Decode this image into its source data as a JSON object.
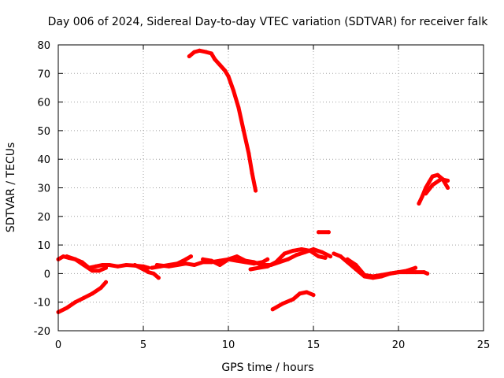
{
  "chart_data": {
    "type": "line",
    "title": "Day 006 of 2024, Sidereal Day-to-day VTEC variation (SDTVAR) for receiver falk",
    "xlabel": "GPS time / hours",
    "ylabel": "SDTVAR / TECUs",
    "xlim": [
      0,
      25
    ],
    "ylim": [
      -20,
      80
    ],
    "grid": true,
    "x_ticks": [
      "0",
      "5",
      "10",
      "15",
      "20",
      "25"
    ],
    "y_ticks": [
      "-20",
      "-10",
      "0",
      "10",
      "20",
      "30",
      "40",
      "50",
      "60",
      "70",
      "80"
    ],
    "x_tick_values": [
      0,
      5,
      10,
      15,
      20,
      25
    ],
    "y_tick_values": [
      -20,
      -10,
      0,
      10,
      20,
      30,
      40,
      50,
      60,
      70,
      80
    ],
    "series_color": "#ff0000",
    "series": [
      {
        "name": "seg-near-zero-a",
        "x": [
          0.0,
          0.3,
          0.6,
          1.0,
          1.4,
          1.8,
          2.2,
          2.6,
          3.0,
          3.5,
          4.0,
          4.5,
          5.0,
          5.3
        ],
        "y": [
          5,
          6,
          5.5,
          5,
          4,
          2,
          2.5,
          3,
          3,
          2.5,
          3,
          2.8,
          2.5,
          2
        ]
      },
      {
        "name": "seg-near-zero-b",
        "x": [
          0.5,
          1.0,
          1.5,
          2.0,
          2.4,
          2.8
        ],
        "y": [
          6,
          5,
          3,
          1,
          1,
          2
        ]
      },
      {
        "name": "seg-near-zero-c",
        "x": [
          4.5,
          5.0,
          5.3,
          5.6,
          5.9
        ],
        "y": [
          3,
          1.5,
          0.5,
          0,
          -1.5
        ]
      },
      {
        "name": "seg-mid-a",
        "x": [
          5.5,
          6.0,
          6.5,
          7.0,
          7.5,
          7.8
        ],
        "y": [
          2,
          2.5,
          3,
          3.5,
          5,
          6
        ]
      },
      {
        "name": "seg-mid-b",
        "x": [
          5.8,
          6.5,
          7.0,
          7.5,
          8.0,
          8.5,
          9.0,
          9.5,
          10.0,
          10.5,
          11.0,
          11.5,
          12.0,
          12.3
        ],
        "y": [
          3,
          2.5,
          3,
          3.5,
          3,
          4,
          4,
          4.5,
          5,
          4.5,
          4,
          3.5,
          4,
          5
        ]
      },
      {
        "name": "seg-mid-c",
        "x": [
          8.5,
          9.0,
          9.5,
          10.0,
          10.5,
          11.0,
          11.5,
          12.0,
          12.5,
          12.8
        ],
        "y": [
          5,
          4.5,
          3,
          5,
          6,
          4.5,
          4,
          3,
          3,
          4
        ]
      },
      {
        "name": "seg-mid-d",
        "x": [
          11.3,
          11.8,
          12.3,
          12.8,
          13.3,
          13.8,
          14.3,
          14.8,
          15.3,
          15.7
        ],
        "y": [
          1.5,
          2,
          2.5,
          4,
          7,
          8,
          8.5,
          8,
          6,
          5.5
        ]
      },
      {
        "name": "seg-mid-e",
        "x": [
          12.5,
          13.0,
          13.5,
          14.0,
          14.5,
          15.0,
          15.5,
          16.0
        ],
        "y": [
          3,
          4,
          5,
          6.5,
          7.5,
          8.5,
          7.5,
          6
        ]
      },
      {
        "name": "seg-bump",
        "x": [
          15.3,
          15.9
        ],
        "y": [
          14.5,
          14.5
        ]
      },
      {
        "name": "seg-right",
        "x": [
          16.2,
          16.6,
          17.0,
          17.5,
          18.0,
          18.5,
          19.0,
          19.5,
          20.0,
          20.5,
          21.0,
          21.5,
          21.7
        ],
        "y": [
          7,
          6,
          4,
          1.5,
          -1,
          -1.5,
          -1,
          0,
          0.5,
          0.5,
          0.5,
          0.5,
          0
        ]
      },
      {
        "name": "seg-right-b",
        "x": [
          17.0,
          17.5,
          18.0,
          18.5,
          19.0,
          19.5,
          20.0,
          20.5,
          21.0
        ],
        "y": [
          5,
          3,
          -0.5,
          -1,
          -0.5,
          0,
          0.5,
          1,
          2
        ]
      },
      {
        "name": "seg-low-left",
        "x": [
          0.0,
          0.5,
          1.0,
          1.5,
          2.0,
          2.5,
          2.8
        ],
        "y": [
          -13.5,
          -12,
          -10,
          -8.5,
          -7,
          -5,
          -3
        ]
      },
      {
        "name": "seg-low-mid",
        "x": [
          12.6,
          13.2,
          13.8,
          14.2,
          14.6,
          15.0
        ],
        "y": [
          -12.5,
          -10.5,
          -9,
          -7,
          -6.5,
          -7.5
        ]
      },
      {
        "name": "seg-high-arc",
        "x": [
          7.7,
          8.0,
          8.3,
          8.7,
          9.0,
          9.2,
          9.5,
          9.8,
          10.0,
          10.3,
          10.6,
          10.9,
          11.2,
          11.4,
          11.6
        ],
        "y": [
          76,
          77.5,
          78,
          77.5,
          77,
          75,
          73,
          71,
          69,
          64,
          58,
          50,
          42,
          35,
          29
        ]
      },
      {
        "name": "seg-late-arc",
        "x": [
          21.2,
          21.4,
          21.6,
          21.8,
          22.0,
          22.3,
          22.6,
          22.9
        ],
        "y": [
          24.5,
          27,
          30,
          32,
          34,
          34.5,
          33,
          30
        ]
      },
      {
        "name": "seg-late-arc-b",
        "x": [
          21.6,
          22.0,
          22.5,
          22.9
        ],
        "y": [
          28,
          31,
          33,
          32.5
        ]
      }
    ]
  }
}
